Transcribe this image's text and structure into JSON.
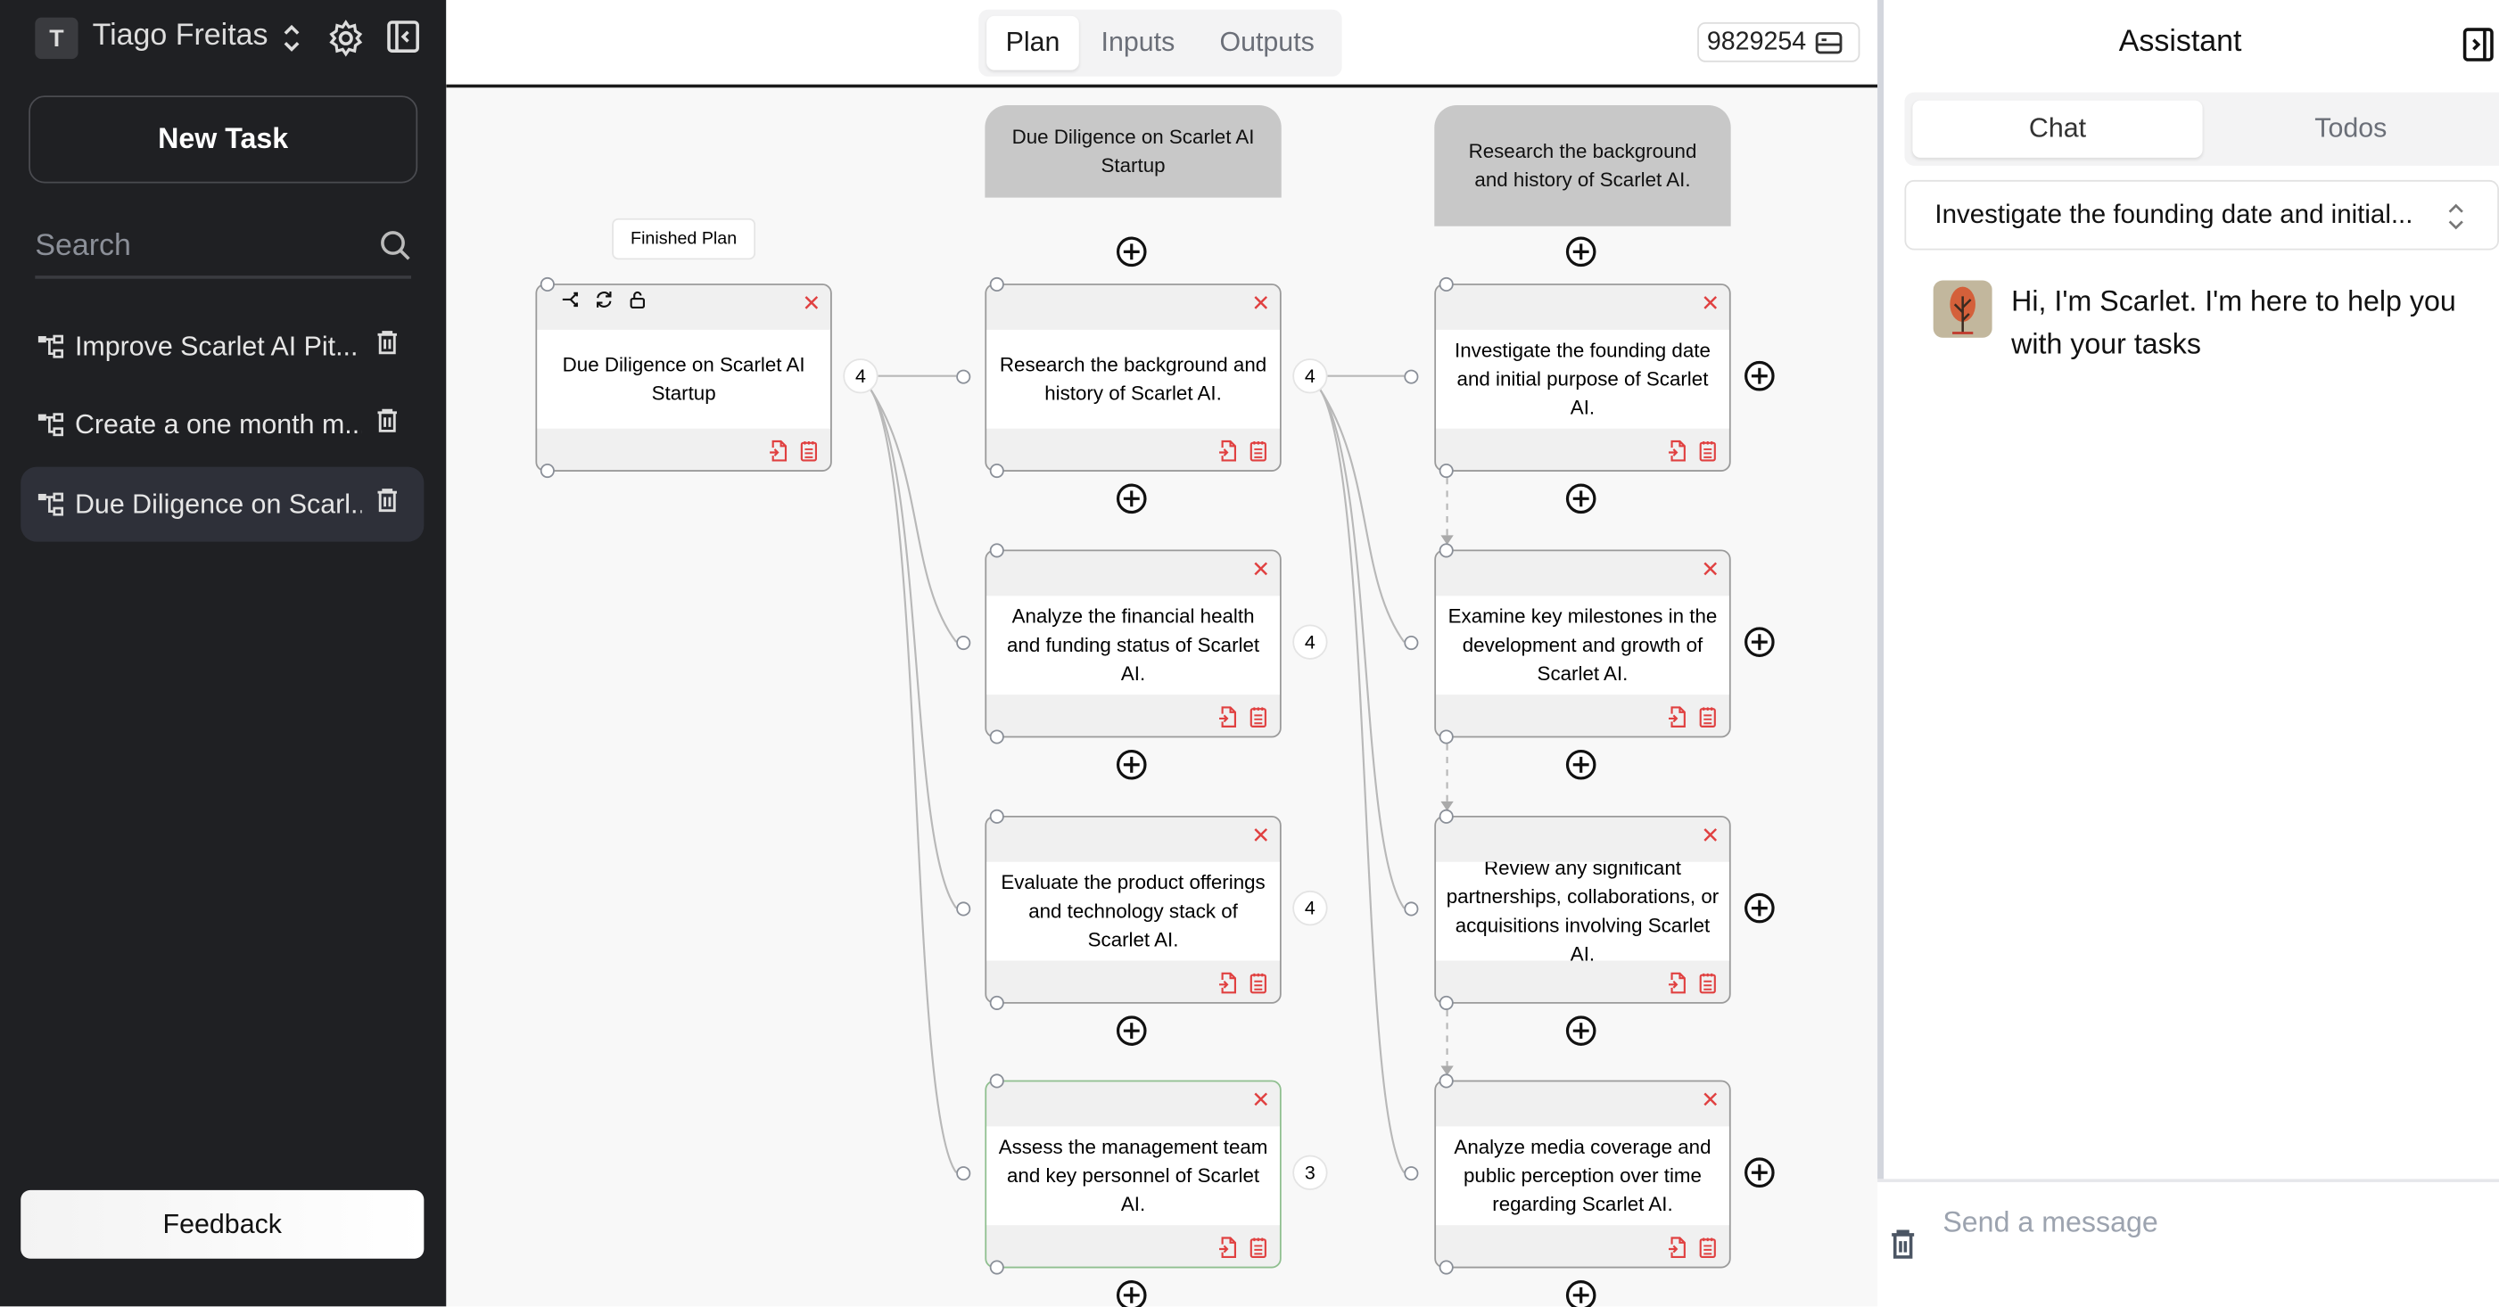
{
  "sidebar": {
    "user_initial": "T",
    "user_name": "Tiago Freitas",
    "new_task": "New Task",
    "search_placeholder": "Search",
    "items": [
      {
        "label": "Improve Scarlet AI Pit..."
      },
      {
        "label": "Create a one month m..."
      },
      {
        "label": "Due Diligence on Scarl...",
        "selected": true
      }
    ],
    "feedback": "Feedback"
  },
  "main": {
    "tabs": [
      {
        "label": "Plan",
        "active": true
      },
      {
        "label": "Inputs"
      },
      {
        "label": "Outputs"
      }
    ],
    "counter": "9829254",
    "finished_plan": "Finished Plan",
    "root_card": {
      "text": "Due Diligence on Scarlet AI Startup",
      "badge": "4"
    },
    "col2_header": "Due Diligence on Scarlet AI Startup",
    "col3_header": "Research the background and history of Scarlet AI.",
    "col2": [
      {
        "text": "Research the background and history of Scarlet AI.",
        "badge": "4"
      },
      {
        "text": "Analyze the financial health and funding status of Scarlet AI.",
        "badge": "4"
      },
      {
        "text": "Evaluate the product offerings and technology stack of Scarlet AI.",
        "badge": "4"
      },
      {
        "text": "Assess the management team and key personnel of Scarlet AI.",
        "badge": "3",
        "highlight": true
      }
    ],
    "col3": [
      {
        "text": "Investigate the founding date and initial purpose of Scarlet AI."
      },
      {
        "text": "Examine key milestones in the development and growth of Scarlet AI."
      },
      {
        "text": "Review any significant partnerships, collaborations, or acquisitions involving Scarlet AI."
      },
      {
        "text": "Analyze media coverage and public perception over time regarding Scarlet AI."
      }
    ]
  },
  "assistant": {
    "title": "Assistant",
    "tabs": [
      {
        "label": "Chat",
        "active": true
      },
      {
        "label": "Todos"
      }
    ],
    "task_select": "Investigate the founding date and initial...",
    "message": "Hi, I'm Scarlet. I'm here to help you with your tasks",
    "input_placeholder": "Send a message"
  },
  "colors": {
    "sidebar_bg": "#1f2023",
    "danger": "#e04040",
    "canvas_bg": "#f8f8f8",
    "node_header": "#c8c8c8"
  }
}
